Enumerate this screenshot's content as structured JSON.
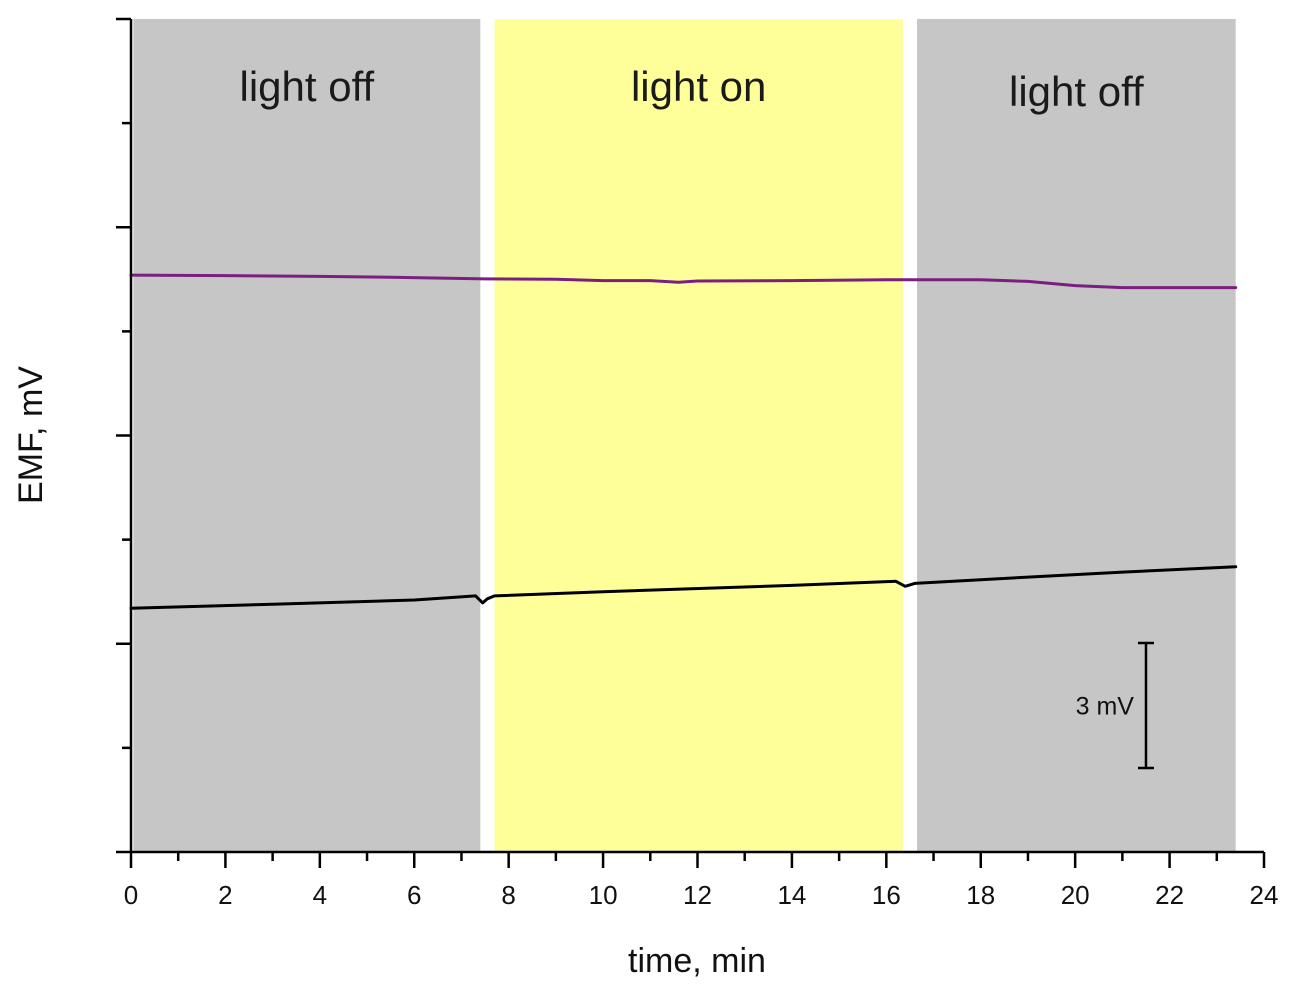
{
  "chart_data": {
    "type": "line",
    "title": "",
    "xlabel": "time, min",
    "ylabel": "EMF, mV",
    "xlim": [
      0,
      24
    ],
    "ylim": [
      -9,
      11
    ],
    "x_ticks": [
      0,
      2,
      4,
      6,
      8,
      10,
      12,
      14,
      16,
      18,
      20,
      22,
      24
    ],
    "y_tick_labels_shown": false,
    "grid": false,
    "regions": [
      {
        "label": "light off",
        "x_start": 0.05,
        "x_end": 7.4,
        "color": "#c6c6c6"
      },
      {
        "label": "light on",
        "x_start": 7.7,
        "x_end": 16.35,
        "color": "#ffff99"
      },
      {
        "label": "light off",
        "x_start": 16.65,
        "x_end": 23.4,
        "color": "#c6c6c6"
      }
    ],
    "scale_bar": {
      "label": "3 mV",
      "value": 3,
      "x": 21.5
    },
    "series": [
      {
        "color": "#7a1f7f",
        "x": [
          0,
          2,
          4,
          5.5,
          7.5,
          9,
          10,
          11,
          11.6,
          12,
          14,
          16,
          17,
          18,
          19,
          20,
          21,
          23.4
        ],
        "values": [
          4.85,
          4.84,
          4.82,
          4.8,
          4.76,
          4.75,
          4.72,
          4.72,
          4.68,
          4.71,
          4.72,
          4.74,
          4.74,
          4.74,
          4.7,
          4.6,
          4.55,
          4.55
        ]
      },
      {
        "color": "#000000",
        "x": [
          0,
          3,
          6,
          7.3,
          7.45,
          7.55,
          7.7,
          10,
          14,
          16.2,
          16.4,
          16.6,
          19,
          21,
          23.4
        ],
        "values": [
          -3.15,
          -3.05,
          -2.95,
          -2.85,
          -3.02,
          -2.92,
          -2.85,
          -2.75,
          -2.6,
          -2.5,
          -2.62,
          -2.55,
          -2.4,
          -2.28,
          -2.15
        ]
      }
    ]
  }
}
